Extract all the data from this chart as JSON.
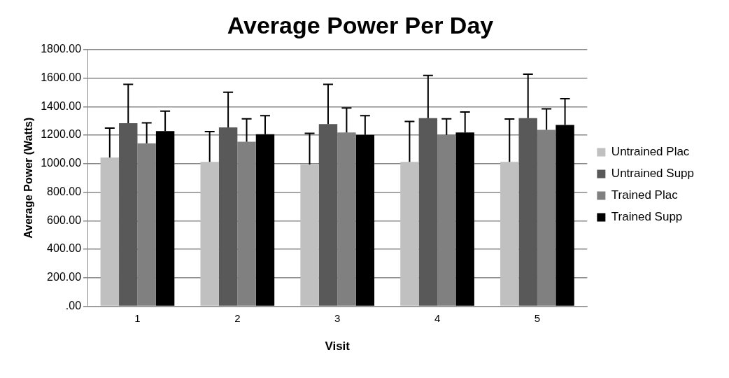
{
  "chart_data": {
    "type": "bar",
    "title": "Average Power Per Day",
    "xlabel": "Visit",
    "ylabel": "Average Power (Watts)",
    "categories": [
      "1",
      "2",
      "3",
      "4",
      "5"
    ],
    "series": [
      {
        "name": "Untrained Plac",
        "color": "#c0c0c0",
        "values": [
          1043,
          1013,
          994,
          1013,
          1013
        ],
        "errors": [
          [
            1043,
            1249
          ],
          [
            1013,
            1225
          ],
          [
            994,
            1213
          ],
          [
            1013,
            1296
          ],
          [
            1013,
            1313
          ]
        ]
      },
      {
        "name": "Untrained Supp",
        "color": "#595959",
        "values": [
          1284,
          1254,
          1278,
          1319,
          1319
        ],
        "errors": [
          [
            1284,
            1556
          ],
          [
            1254,
            1501
          ],
          [
            1278,
            1556
          ],
          [
            1319,
            1619
          ],
          [
            1319,
            1627
          ]
        ]
      },
      {
        "name": "Trained Plac",
        "color": "#808080",
        "values": [
          1143,
          1154,
          1219,
          1201,
          1237
        ],
        "errors": [
          [
            1143,
            1286
          ],
          [
            1154,
            1315
          ],
          [
            1219,
            1390
          ],
          [
            1201,
            1315
          ],
          [
            1237,
            1384
          ]
        ]
      },
      {
        "name": "Trained Supp",
        "color": "#000000",
        "values": [
          1229,
          1207,
          1201,
          1219,
          1272
        ],
        "errors": [
          [
            1229,
            1368
          ],
          [
            1207,
            1337
          ],
          [
            1201,
            1337
          ],
          [
            1219,
            1362
          ],
          [
            1272,
            1456
          ]
        ]
      }
    ],
    "ylim": [
      0,
      1800
    ],
    "yticks": [
      {
        "value": 0,
        "label": ".00"
      },
      {
        "value": 200,
        "label": "200.00"
      },
      {
        "value": 400,
        "label": "400.00"
      },
      {
        "value": 600,
        "label": "600.00"
      },
      {
        "value": 800,
        "label": "800.00"
      },
      {
        "value": 1000,
        "label": "1000.00"
      },
      {
        "value": 1200,
        "label": "1200.00"
      },
      {
        "value": 1400,
        "label": "1400.00"
      },
      {
        "value": 1600,
        "label": "1600.00"
      },
      {
        "value": 1800,
        "label": "1800.00"
      }
    ],
    "grid": "y",
    "legend": "right"
  }
}
